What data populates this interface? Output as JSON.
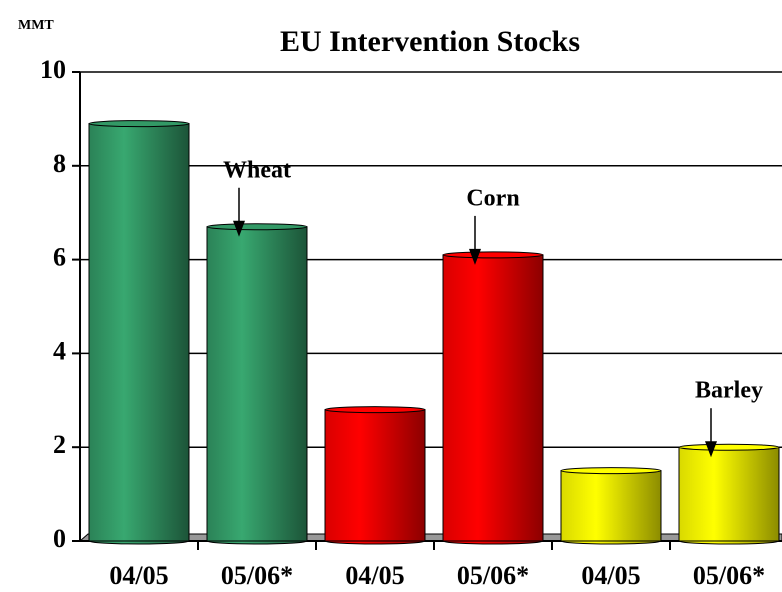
{
  "chart_data": {
    "type": "bar",
    "title": "EU Intervention Stocks",
    "y_label": "MMT",
    "categories": [
      "04/05",
      "05/06*",
      "04/05",
      "05/06*",
      "04/05",
      "05/06*"
    ],
    "series": [
      {
        "name": "Wheat",
        "color": "#339966",
        "values": [
          8.9,
          6.7,
          null,
          null,
          null,
          null
        ]
      },
      {
        "name": "Corn",
        "color": "#ff0000",
        "values": [
          null,
          null,
          2.8,
          6.1,
          null,
          null
        ]
      },
      {
        "name": "Barley",
        "color": "#ffff00",
        "values": [
          null,
          null,
          null,
          null,
          1.5,
          2.0
        ]
      }
    ],
    "ylim": [
      0,
      10
    ],
    "yticks": [
      0,
      2,
      4,
      6,
      8,
      10
    ],
    "grid": true
  }
}
